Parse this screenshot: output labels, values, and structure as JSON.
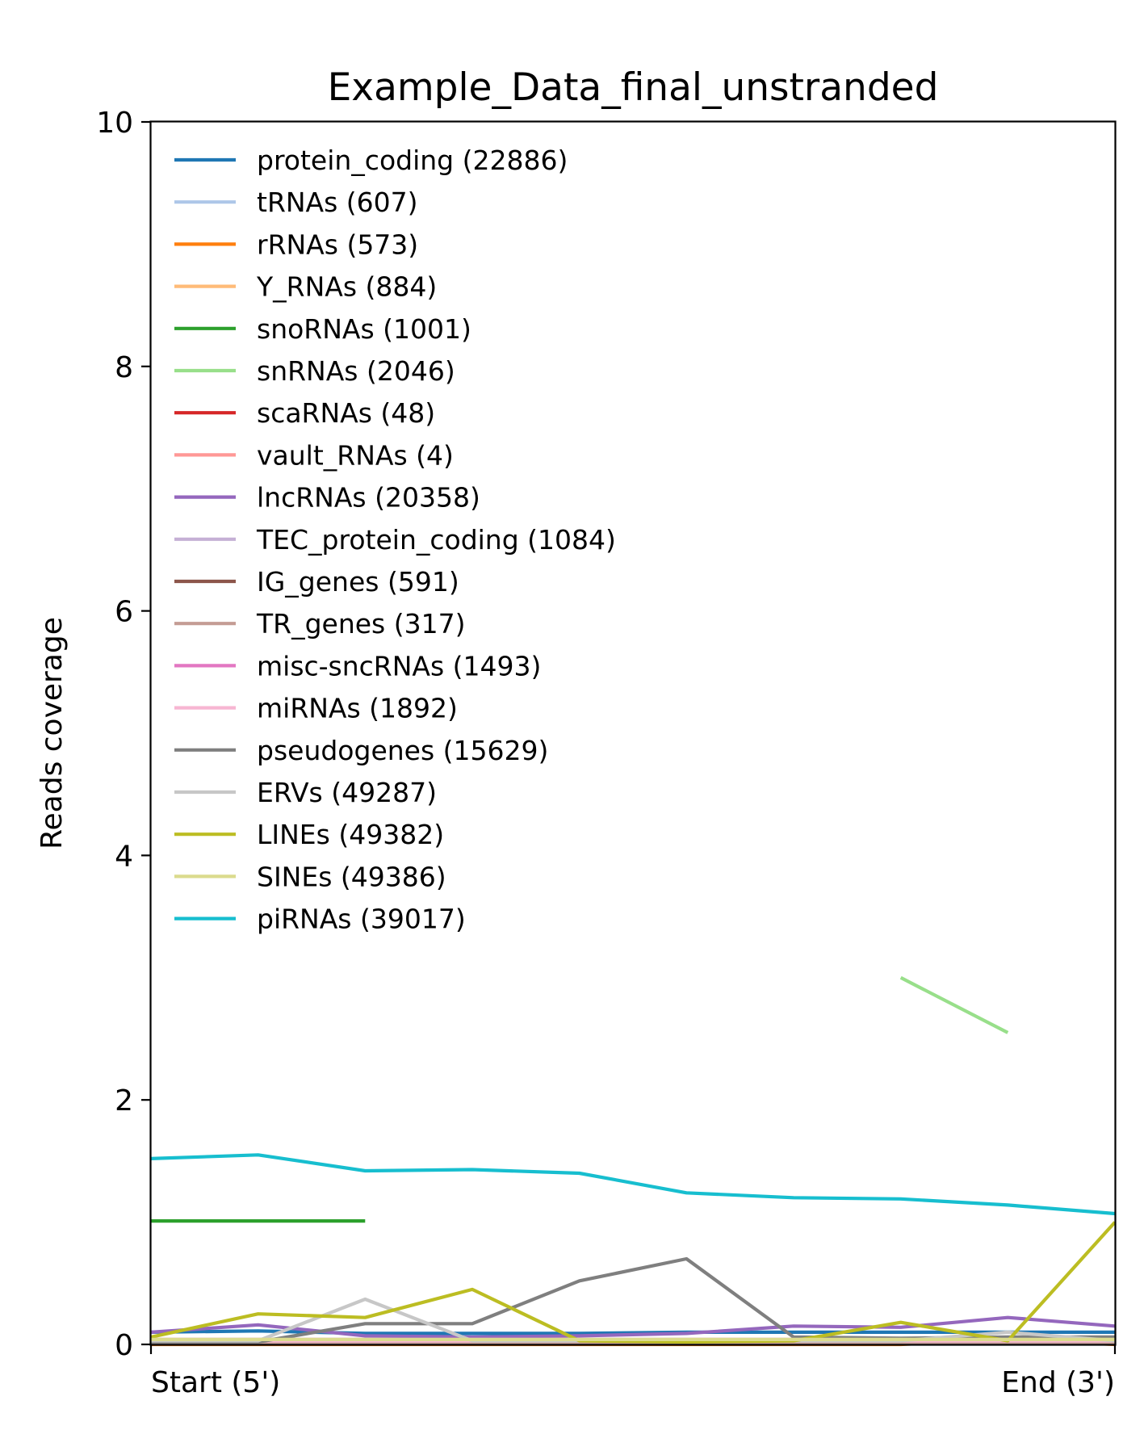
{
  "chart_data": {
    "type": "line",
    "title": "Example_Data_final_unstranded",
    "xlabel": "",
    "ylabel": "Reads coverage",
    "x_tick_labels": [
      "Start (5')",
      "End (3')"
    ],
    "x": [
      0,
      1,
      2,
      3,
      4,
      5,
      6,
      7,
      8,
      9
    ],
    "xlim": [
      0.0,
      9.0
    ],
    "ylim": [
      0,
      10
    ],
    "yticks": [
      0,
      2,
      4,
      6,
      8,
      10
    ],
    "grid": false,
    "legend_position": "top-left",
    "series": [
      {
        "name": "protein_coding (22886)",
        "color": "#1f77b4",
        "values": [
          0.1,
          0.11,
          0.09,
          0.09,
          0.09,
          0.1,
          0.1,
          0.1,
          0.1,
          0.1
        ]
      },
      {
        "name": "tRNAs (607)",
        "color": "#aec7e8",
        "values": [
          0.02,
          0.02,
          0.02,
          0.02,
          0.02,
          0.02,
          0.02,
          0.02,
          0.02,
          0.02
        ]
      },
      {
        "name": "rRNAs (573)",
        "color": "#ff7f0e",
        "values": [
          0.0,
          0.0,
          0.0,
          0.0,
          0.0,
          0.0,
          0.0,
          0.0,
          0.04,
          0.0
        ]
      },
      {
        "name": "Y_RNAs (884)",
        "color": "#ffbb78",
        "values": [
          0.01,
          0.01,
          0.01,
          0.01,
          0.01,
          0.01,
          0.01,
          0.01,
          0.01,
          0.01
        ]
      },
      {
        "name": "snoRNAs (1001)",
        "color": "#2ca02c",
        "values": [
          1.01,
          1.01,
          1.01,
          null,
          null,
          null,
          null,
          null,
          null,
          null
        ]
      },
      {
        "name": "snRNAs (2046)",
        "color": "#98df8a",
        "values": [
          null,
          null,
          null,
          null,
          null,
          null,
          null,
          3.0,
          2.55,
          null
        ]
      },
      {
        "name": "scaRNAs (48)",
        "color": "#d62728",
        "values": [
          null,
          null,
          null,
          null,
          null,
          null,
          null,
          null,
          null,
          null
        ]
      },
      {
        "name": "vault_RNAs (4)",
        "color": "#ff9896",
        "values": [
          null,
          null,
          null,
          null,
          null,
          null,
          null,
          null,
          null,
          null
        ]
      },
      {
        "name": "lncRNAs (20358)",
        "color": "#9467bd",
        "values": [
          0.1,
          0.16,
          0.07,
          0.06,
          0.07,
          0.09,
          0.15,
          0.14,
          0.22,
          0.15
        ]
      },
      {
        "name": "TEC_protein_coding (1084)",
        "color": "#c5b0d5",
        "values": [
          0.02,
          0.02,
          0.02,
          0.02,
          0.02,
          0.02,
          0.02,
          0.02,
          0.02,
          0.02
        ]
      },
      {
        "name": "IG_genes (591)",
        "color": "#8c564b",
        "values": [
          0.01,
          0.01,
          0.01,
          0.01,
          0.01,
          0.01,
          0.01,
          0.01,
          0.01,
          0.01
        ]
      },
      {
        "name": "TR_genes (317)",
        "color": "#c49c94",
        "values": [
          0.01,
          0.01,
          0.01,
          0.01,
          0.01,
          0.01,
          0.01,
          0.01,
          0.01,
          0.01
        ]
      },
      {
        "name": "misc-sncRNAs (1493)",
        "color": "#e377c2",
        "values": [
          0.04,
          0.04,
          0.04,
          0.04,
          0.04,
          0.04,
          0.04,
          0.04,
          0.04,
          0.04
        ]
      },
      {
        "name": "miRNAs (1892)",
        "color": "#f7b6d2",
        "values": [
          0.03,
          0.03,
          0.03,
          0.03,
          0.03,
          0.03,
          0.03,
          0.03,
          0.03,
          0.03
        ]
      },
      {
        "name": "pseudogenes (15629)",
        "color": "#7f7f7f",
        "values": [
          0.02,
          0.02,
          0.17,
          0.17,
          0.52,
          0.7,
          0.06,
          0.05,
          0.06,
          0.06
        ]
      },
      {
        "name": "ERVs (49287)",
        "color": "#c7c7c7",
        "values": [
          0.03,
          0.03,
          0.37,
          0.03,
          0.03,
          0.03,
          0.03,
          0.03,
          0.1,
          0.03
        ]
      },
      {
        "name": "LINEs (49382)",
        "color": "#bcbd22",
        "values": [
          0.06,
          0.25,
          0.22,
          0.45,
          0.03,
          0.02,
          0.03,
          0.18,
          0.03,
          1.0
        ]
      },
      {
        "name": "SINEs (49386)",
        "color": "#dbdb8d",
        "values": [
          0.04,
          0.04,
          0.04,
          0.04,
          0.04,
          0.04,
          0.04,
          0.04,
          0.04,
          0.04
        ]
      },
      {
        "name": "piRNAs (39017)",
        "color": "#17becf",
        "values": [
          1.52,
          1.55,
          1.42,
          1.43,
          1.4,
          1.24,
          1.2,
          1.19,
          1.14,
          1.07
        ]
      }
    ]
  }
}
